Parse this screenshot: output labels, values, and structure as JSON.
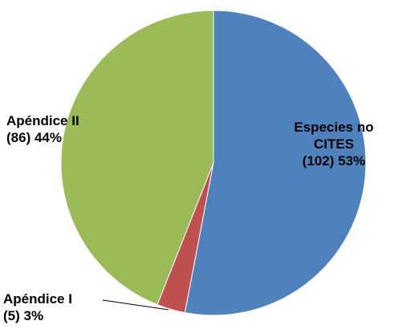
{
  "chart_data": {
    "type": "pie",
    "categories": [
      "Especies no CITES",
      "Apéndice I",
      "Apéndice II"
    ],
    "values": [
      53,
      3,
      44
    ],
    "value_labels": [
      "(102) 53%",
      "(5) 3%",
      "(86) 44%"
    ],
    "colors": [
      "#4f81bd",
      "#c0504d",
      "#9bbb59"
    ]
  }
}
